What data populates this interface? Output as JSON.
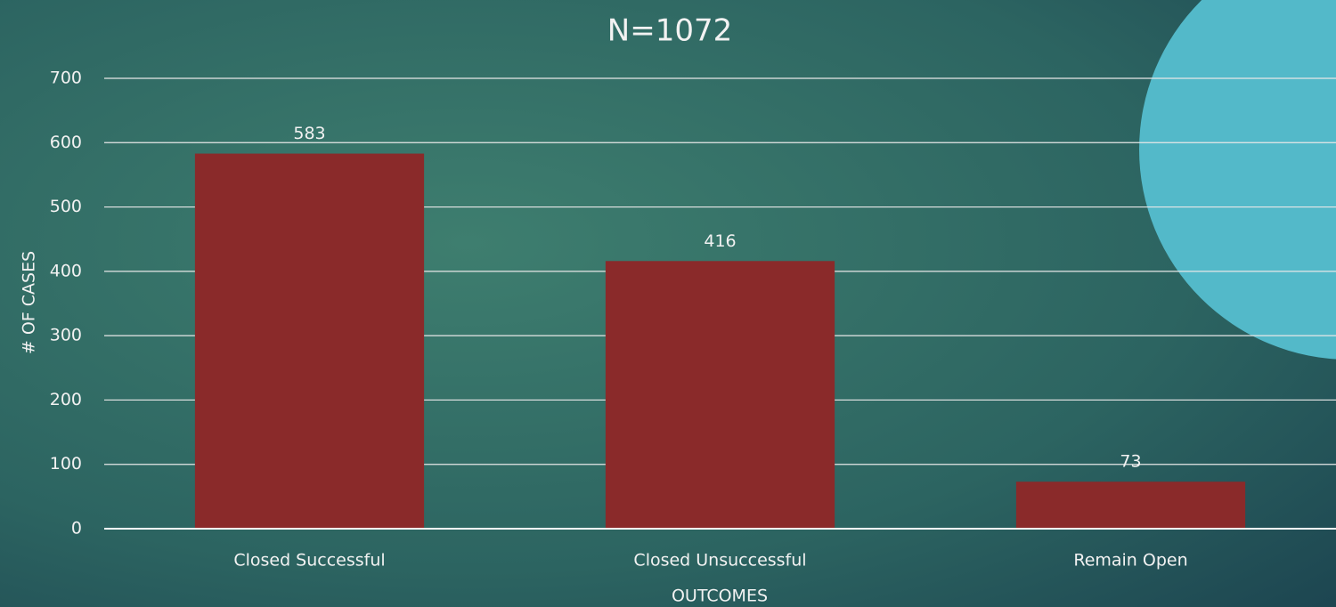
{
  "chart_data": {
    "type": "bar",
    "title": "N=1072",
    "categories": [
      "Closed Successful",
      "Closed Unsuccessful",
      "Remain Open"
    ],
    "values": [
      583,
      416,
      73
    ],
    "color": "#8a2a2a",
    "ylim": [
      0,
      700
    ],
    "yticks": [
      0,
      100,
      200,
      300,
      400,
      500,
      600,
      700
    ],
    "grid": true,
    "y_label": "# OF CASES",
    "x_label": "OUTCOMES"
  }
}
